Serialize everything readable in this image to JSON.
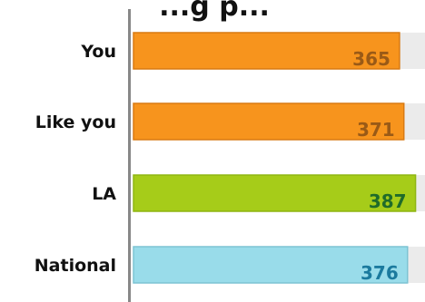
{
  "chart_data": {
    "type": "bar",
    "orientation": "horizontal",
    "title": "...g p...",
    "categories": [
      "You",
      "Like you",
      "LA",
      "National"
    ],
    "values": [
      365,
      371,
      387,
      376
    ],
    "xlim": [
      0,
      400
    ],
    "grid": false,
    "legend": "none",
    "bar_colors": [
      "#f7941d",
      "#f7941d",
      "#a6cc19",
      "#99dcea"
    ],
    "bar_border_colors": [
      "#d97a12",
      "#d97a12",
      "#8fb513",
      "#7dc3d3"
    ],
    "label_colors": [
      "#9a5a16",
      "#9a5a16",
      "#1f6b2a",
      "#1b7a9e"
    ],
    "track_color": "#ebebeb",
    "axis_color": "#888888"
  }
}
